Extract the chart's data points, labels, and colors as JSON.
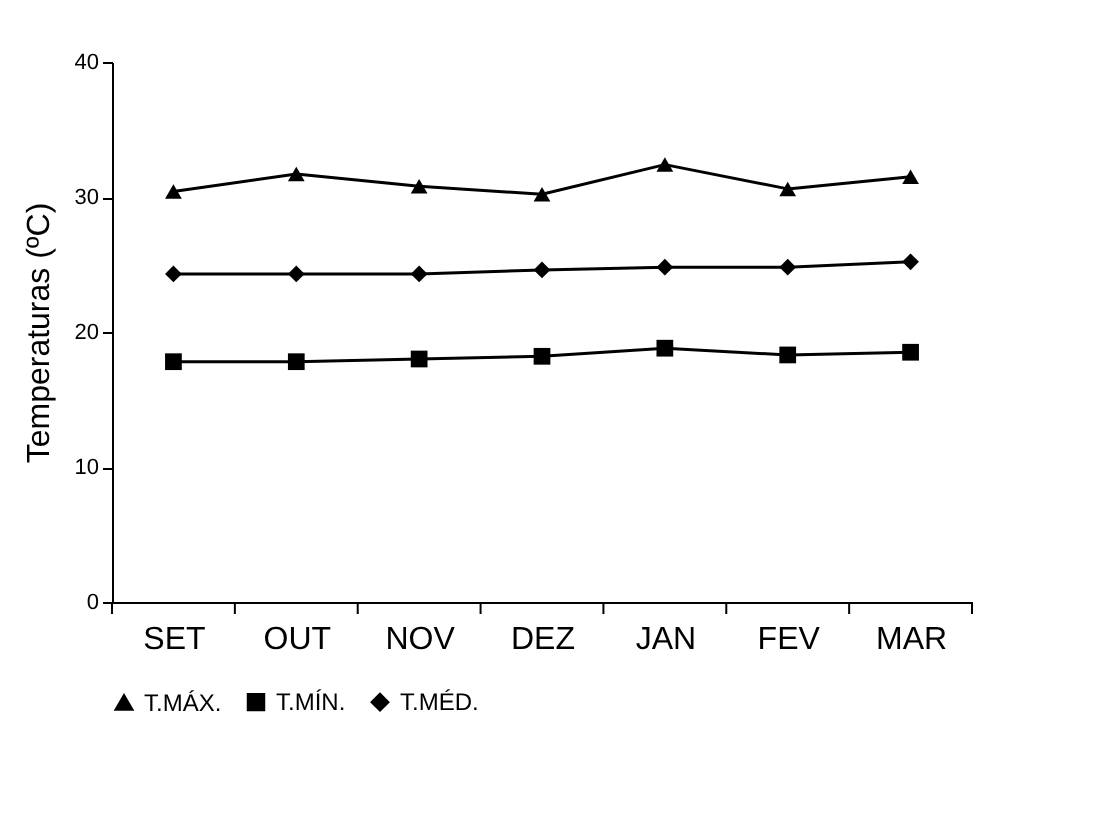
{
  "chart_data": {
    "type": "line",
    "ylabel": "Temperaturas (ºC)",
    "categories": [
      "SET",
      "OUT",
      "NOV",
      "DEZ",
      "JAN",
      "FEV",
      "MAR"
    ],
    "series": [
      {
        "name": "T.MÁX.",
        "color": "#000000",
        "marker": "triangle",
        "values": [
          30.4,
          31.7,
          30.8,
          30.2,
          32.4,
          30.6,
          31.5
        ]
      },
      {
        "name": "T.MÍN.",
        "color": "#000000",
        "marker": "square",
        "values": [
          17.8,
          17.8,
          18.0,
          18.2,
          18.8,
          18.3,
          18.5
        ]
      },
      {
        "name": "T.MÉD.",
        "color": "#000000",
        "marker": "diamond",
        "values": [
          24.3,
          24.3,
          24.3,
          24.6,
          24.8,
          24.8,
          25.2
        ]
      }
    ],
    "ylim": [
      0,
      40
    ],
    "yticks": [
      0,
      10,
      20,
      30,
      40
    ],
    "grid": false,
    "legend": "bottom",
    "line_style": "solid"
  }
}
